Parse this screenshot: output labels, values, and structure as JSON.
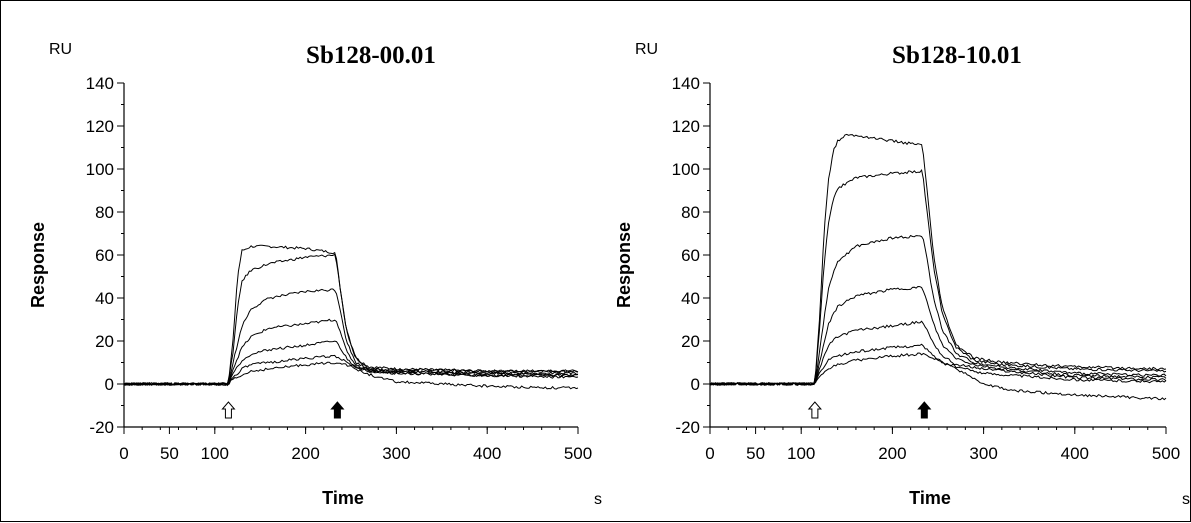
{
  "chart_data": [
    {
      "type": "line",
      "title": "Sb128-00.01",
      "xlabel": "Time",
      "ylabel": "Response",
      "x_unit": "s",
      "y_unit": "RU",
      "xlim": [
        0,
        500
      ],
      "ylim": [
        -20,
        140
      ],
      "x_ticks": [
        0,
        50,
        100,
        200,
        300,
        400,
        500
      ],
      "y_ticks": [
        -20,
        0,
        20,
        40,
        60,
        80,
        100,
        120,
        140
      ],
      "markers": {
        "injection_start": 115,
        "injection_end": 235
      },
      "series": [
        {
          "points": [
            [
              0,
              0
            ],
            [
              115,
              0
            ],
            [
              120,
              20
            ],
            [
              125,
              50
            ],
            [
              130,
              62
            ],
            [
              140,
              64
            ],
            [
              160,
              64
            ],
            [
              200,
              63
            ],
            [
              233,
              61
            ],
            [
              238,
              45
            ],
            [
              245,
              25
            ],
            [
              255,
              12
            ],
            [
              270,
              8
            ],
            [
              300,
              7
            ],
            [
              400,
              6
            ],
            [
              500,
              6
            ]
          ]
        },
        {
          "points": [
            [
              0,
              0
            ],
            [
              115,
              0
            ],
            [
              120,
              15
            ],
            [
              125,
              35
            ],
            [
              130,
              48
            ],
            [
              140,
              53
            ],
            [
              160,
              56
            ],
            [
              200,
              59
            ],
            [
              233,
              60
            ],
            [
              238,
              45
            ],
            [
              245,
              25
            ],
            [
              255,
              12
            ],
            [
              270,
              7
            ],
            [
              300,
              7
            ],
            [
              400,
              6
            ],
            [
              500,
              6
            ]
          ]
        },
        {
          "points": [
            [
              0,
              0
            ],
            [
              115,
              0
            ],
            [
              120,
              10
            ],
            [
              130,
              27
            ],
            [
              140,
              35
            ],
            [
              160,
              40
            ],
            [
              200,
              43
            ],
            [
              233,
              44
            ],
            [
              238,
              35
            ],
            [
              245,
              20
            ],
            [
              255,
              10
            ],
            [
              270,
              7
            ],
            [
              300,
              6
            ],
            [
              400,
              5
            ],
            [
              500,
              5
            ]
          ]
        },
        {
          "points": [
            [
              0,
              0
            ],
            [
              115,
              0
            ],
            [
              120,
              7
            ],
            [
              130,
              17
            ],
            [
              140,
              22
            ],
            [
              160,
              26
            ],
            [
              200,
              28
            ],
            [
              233,
              30
            ],
            [
              238,
              25
            ],
            [
              245,
              15
            ],
            [
              255,
              9
            ],
            [
              270,
              6
            ],
            [
              300,
              6
            ],
            [
              400,
              5
            ],
            [
              500,
              4
            ]
          ]
        },
        {
          "points": [
            [
              0,
              0
            ],
            [
              115,
              0
            ],
            [
              120,
              5
            ],
            [
              130,
              11
            ],
            [
              140,
              14
            ],
            [
              160,
              16
            ],
            [
              200,
              18
            ],
            [
              233,
              20
            ],
            [
              238,
              17
            ],
            [
              245,
              12
            ],
            [
              255,
              8
            ],
            [
              270,
              6
            ],
            [
              300,
              5
            ],
            [
              400,
              4
            ],
            [
              500,
              4
            ]
          ]
        },
        {
          "points": [
            [
              0,
              0
            ],
            [
              115,
              0
            ],
            [
              120,
              3
            ],
            [
              130,
              7
            ],
            [
              140,
              9
            ],
            [
              160,
              10
            ],
            [
              200,
              12
            ],
            [
              233,
              13
            ],
            [
              238,
              12
            ],
            [
              245,
              10
            ],
            [
              260,
              7
            ],
            [
              280,
              6
            ],
            [
              300,
              5
            ],
            [
              400,
              4
            ],
            [
              500,
              3
            ]
          ]
        },
        {
          "points": [
            [
              0,
              0
            ],
            [
              115,
              0
            ],
            [
              120,
              2
            ],
            [
              130,
              4
            ],
            [
              140,
              6
            ],
            [
              160,
              7
            ],
            [
              200,
              9
            ],
            [
              233,
              10
            ],
            [
              238,
              10
            ],
            [
              245,
              9
            ],
            [
              260,
              6
            ],
            [
              280,
              3
            ],
            [
              300,
              1
            ],
            [
              400,
              -1
            ],
            [
              500,
              -2
            ]
          ]
        }
      ]
    },
    {
      "type": "line",
      "title": "Sb128-10.01",
      "xlabel": "Time",
      "ylabel": "Response",
      "x_unit": "s",
      "y_unit": "RU",
      "xlim": [
        0,
        500
      ],
      "ylim": [
        -20,
        140
      ],
      "x_ticks": [
        0,
        50,
        100,
        200,
        300,
        400,
        500
      ],
      "y_ticks": [
        -20,
        0,
        20,
        40,
        60,
        80,
        100,
        120,
        140
      ],
      "markers": {
        "injection_start": 115,
        "injection_end": 235
      },
      "series": [
        {
          "points": [
            [
              0,
              0
            ],
            [
              115,
              0
            ],
            [
              120,
              30
            ],
            [
              125,
              70
            ],
            [
              130,
              95
            ],
            [
              135,
              108
            ],
            [
              140,
              113
            ],
            [
              150,
              116
            ],
            [
              170,
              115
            ],
            [
              200,
              113
            ],
            [
              233,
              111
            ],
            [
              238,
              90
            ],
            [
              245,
              60
            ],
            [
              255,
              35
            ],
            [
              270,
              18
            ],
            [
              290,
              12
            ],
            [
              320,
              10
            ],
            [
              400,
              8
            ],
            [
              500,
              7
            ]
          ]
        },
        {
          "points": [
            [
              0,
              0
            ],
            [
              115,
              0
            ],
            [
              120,
              25
            ],
            [
              125,
              55
            ],
            [
              130,
              75
            ],
            [
              135,
              85
            ],
            [
              140,
              91
            ],
            [
              160,
              96
            ],
            [
              200,
              98
            ],
            [
              233,
              99
            ],
            [
              238,
              80
            ],
            [
              245,
              55
            ],
            [
              255,
              32
            ],
            [
              270,
              17
            ],
            [
              290,
              11
            ],
            [
              320,
              9
            ],
            [
              400,
              7
            ],
            [
              500,
              6
            ]
          ]
        },
        {
          "points": [
            [
              0,
              0
            ],
            [
              115,
              0
            ],
            [
              120,
              15
            ],
            [
              130,
              45
            ],
            [
              140,
              57
            ],
            [
              160,
              64
            ],
            [
              200,
              68
            ],
            [
              233,
              69
            ],
            [
              238,
              58
            ],
            [
              245,
              40
            ],
            [
              255,
              25
            ],
            [
              270,
              14
            ],
            [
              290,
              10
            ],
            [
              320,
              8
            ],
            [
              400,
              5
            ],
            [
              500,
              4
            ]
          ]
        },
        {
          "points": [
            [
              0,
              0
            ],
            [
              115,
              0
            ],
            [
              120,
              10
            ],
            [
              130,
              28
            ],
            [
              140,
              36
            ],
            [
              160,
              41
            ],
            [
              200,
              44
            ],
            [
              233,
              45
            ],
            [
              238,
              38
            ],
            [
              245,
              28
            ],
            [
              255,
              18
            ],
            [
              270,
              12
            ],
            [
              290,
              9
            ],
            [
              320,
              7
            ],
            [
              400,
              4
            ],
            [
              500,
              3
            ]
          ]
        },
        {
          "points": [
            [
              0,
              0
            ],
            [
              115,
              0
            ],
            [
              120,
              7
            ],
            [
              130,
              18
            ],
            [
              140,
              22
            ],
            [
              160,
              25
            ],
            [
              200,
              27
            ],
            [
              233,
              29
            ],
            [
              238,
              25
            ],
            [
              245,
              19
            ],
            [
              255,
              13
            ],
            [
              270,
              9
            ],
            [
              300,
              7
            ],
            [
              400,
              3
            ],
            [
              500,
              2
            ]
          ]
        },
        {
          "points": [
            [
              0,
              0
            ],
            [
              115,
              0
            ],
            [
              120,
              5
            ],
            [
              130,
              11
            ],
            [
              140,
              13
            ],
            [
              160,
              15
            ],
            [
              200,
              17
            ],
            [
              233,
              18
            ],
            [
              238,
              16
            ],
            [
              245,
              13
            ],
            [
              255,
              10
            ],
            [
              270,
              8
            ],
            [
              300,
              5
            ],
            [
              400,
              2
            ],
            [
              500,
              1
            ]
          ]
        },
        {
          "points": [
            [
              0,
              0
            ],
            [
              115,
              0
            ],
            [
              120,
              3
            ],
            [
              130,
              7
            ],
            [
              140,
              9
            ],
            [
              160,
              11
            ],
            [
              200,
              13
            ],
            [
              233,
              14
            ],
            [
              238,
              13
            ],
            [
              245,
              12
            ],
            [
              260,
              9
            ],
            [
              280,
              5
            ],
            [
              300,
              0
            ],
            [
              330,
              -3
            ],
            [
              400,
              -5
            ],
            [
              500,
              -7
            ]
          ]
        }
      ]
    }
  ]
}
